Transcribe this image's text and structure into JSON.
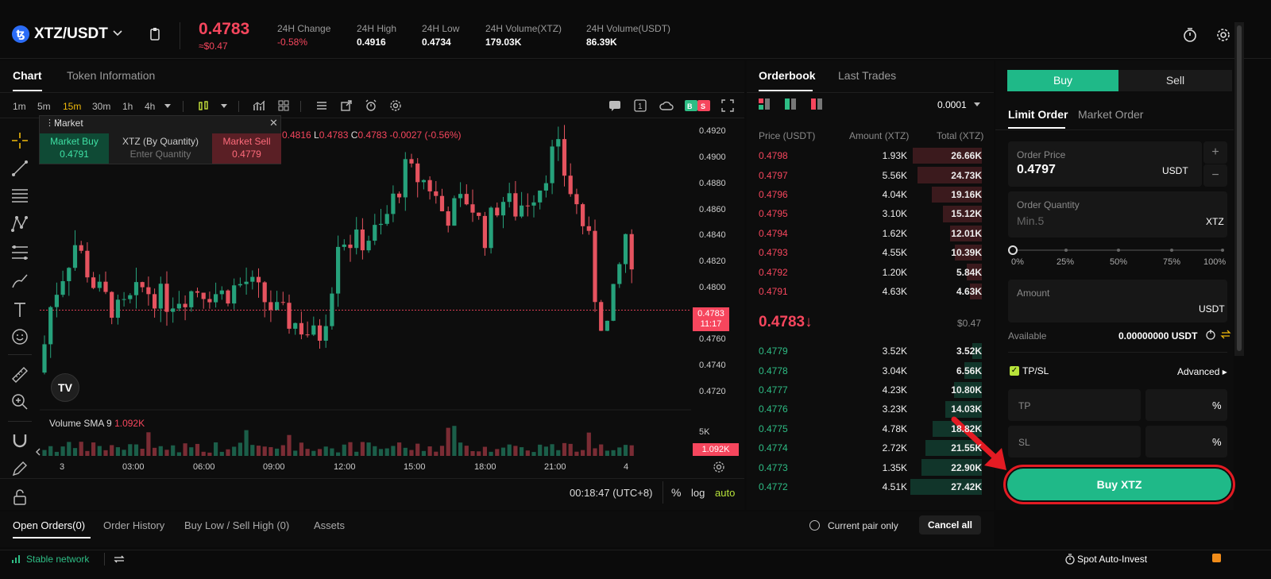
{
  "header": {
    "coin_symbol": "ꜩ",
    "pair": "XTZ/USDT",
    "price": "0.4783",
    "price_fiat": "≈$0.47",
    "stats": [
      {
        "label": "24H Change",
        "value": "-0.58%"
      },
      {
        "label": "24H High",
        "value": "0.4916"
      },
      {
        "label": "24H Low",
        "value": "0.4734"
      },
      {
        "label": "24H Volume(XTZ)",
        "value": "179.03K"
      },
      {
        "label": "24H Volume(USDT)",
        "value": "86.39K"
      }
    ]
  },
  "chart_tabs": {
    "chart": "Chart",
    "token_info": "Token Information"
  },
  "toolbar": {
    "intervals": [
      "1m",
      "5m",
      "15m",
      "30m",
      "1h",
      "4h"
    ],
    "active_interval": "15m"
  },
  "market_widget": {
    "title": "Market",
    "buy_label": "Market Buy",
    "buy_price": "0.4791",
    "qty_label": "XTZ (By Quantity)",
    "qty_placeholder": "Enter Quantity",
    "sell_label": "Market Sell",
    "sell_price": "0.4779"
  },
  "ohlc_line": {
    "h": "0.4816",
    "l": "0.4783",
    "c": "0.4783",
    "change": "-0.0027 (-0.56%)"
  },
  "price_axis": [
    "0.4920",
    "0.4900",
    "0.4880",
    "0.4860",
    "0.4840",
    "0.4820",
    "0.4800",
    "0.4760",
    "0.4740",
    "0.4720"
  ],
  "current_price_tag": {
    "price": "0.4783",
    "countdown": "11:17"
  },
  "volume": {
    "label": "Volume SMA 9",
    "value": "1.092K",
    "axis_5k": "5K",
    "tag": "1.092K"
  },
  "time_axis": [
    "3",
    "03:00",
    "06:00",
    "09:00",
    "12:00",
    "15:00",
    "18:00",
    "21:00",
    "4"
  ],
  "chart_footer": {
    "clock": "00:18:47 (UTC+8)",
    "pct": "%",
    "log": "log",
    "auto": "auto"
  },
  "chart_data": {
    "type": "candlestick",
    "ylim": [
      0.471,
      0.493
    ],
    "x_range": [
      "3 00:00",
      "4 00:15"
    ]
  },
  "orderbook": {
    "tabs": {
      "orderbook": "Orderbook",
      "last_trades": "Last Trades"
    },
    "precision": "0.0001",
    "headers": {
      "price": "Price (USDT)",
      "amount": "Amount (XTZ)",
      "total": "Total (XTZ)"
    },
    "asks": [
      {
        "price": "0.4798",
        "amount": "1.93K",
        "total": "26.66K",
        "depth": 0.97
      },
      {
        "price": "0.4797",
        "amount": "5.56K",
        "total": "24.73K",
        "depth": 0.9
      },
      {
        "price": "0.4796",
        "amount": "4.04K",
        "total": "19.16K",
        "depth": 0.7
      },
      {
        "price": "0.4795",
        "amount": "3.10K",
        "total": "15.12K",
        "depth": 0.55
      },
      {
        "price": "0.4794",
        "amount": "1.62K",
        "total": "12.01K",
        "depth": 0.44
      },
      {
        "price": "0.4793",
        "amount": "4.55K",
        "total": "10.39K",
        "depth": 0.38
      },
      {
        "price": "0.4792",
        "amount": "1.20K",
        "total": "5.84K",
        "depth": 0.21
      },
      {
        "price": "0.4791",
        "amount": "4.63K",
        "total": "4.63K",
        "depth": 0.17
      }
    ],
    "last_price": "0.4783↓",
    "last_price_fiat": "$0.47",
    "bids": [
      {
        "price": "0.4779",
        "amount": "3.52K",
        "total": "3.52K",
        "depth": 0.13
      },
      {
        "price": "0.4778",
        "amount": "3.04K",
        "total": "6.56K",
        "depth": 0.24
      },
      {
        "price": "0.4777",
        "amount": "4.23K",
        "total": "10.80K",
        "depth": 0.39
      },
      {
        "price": "0.4776",
        "amount": "3.23K",
        "total": "14.03K",
        "depth": 0.51
      },
      {
        "price": "0.4775",
        "amount": "4.78K",
        "total": "18.82K",
        "depth": 0.69
      },
      {
        "price": "0.4774",
        "amount": "2.72K",
        "total": "21.55K",
        "depth": 0.79
      },
      {
        "price": "0.4773",
        "amount": "1.35K",
        "total": "22.90K",
        "depth": 0.84
      },
      {
        "price": "0.4772",
        "amount": "4.51K",
        "total": "27.42K",
        "depth": 1.0
      }
    ]
  },
  "trade": {
    "buy": "Buy",
    "sell": "Sell",
    "limit": "Limit Order",
    "market": "Market Order",
    "order_price_label": "Order Price",
    "order_price": "0.4797",
    "price_unit": "USDT",
    "qty_label": "Order Quantity",
    "qty_placeholder": "Min.5",
    "qty_unit": "XTZ",
    "slider": [
      "0%",
      "25%",
      "50%",
      "75%",
      "100%"
    ],
    "amount_label": "Amount",
    "amount_unit": "USDT",
    "available_label": "Available",
    "available_value": "0.00000000 USDT",
    "tpsl": "TP/SL",
    "advanced": "Advanced ▸",
    "tp": "TP",
    "sl": "SL",
    "pct": "%",
    "buy_button": "Buy XTZ"
  },
  "bottom": {
    "tabs": [
      "Open Orders(0)",
      "Order History",
      "Buy Low / Sell High (0)",
      "Assets"
    ],
    "current_pair": "Current pair only",
    "cancel_all": "Cancel all"
  },
  "status": {
    "network": "Stable network",
    "auto_invest": "Spot Auto-Invest"
  }
}
